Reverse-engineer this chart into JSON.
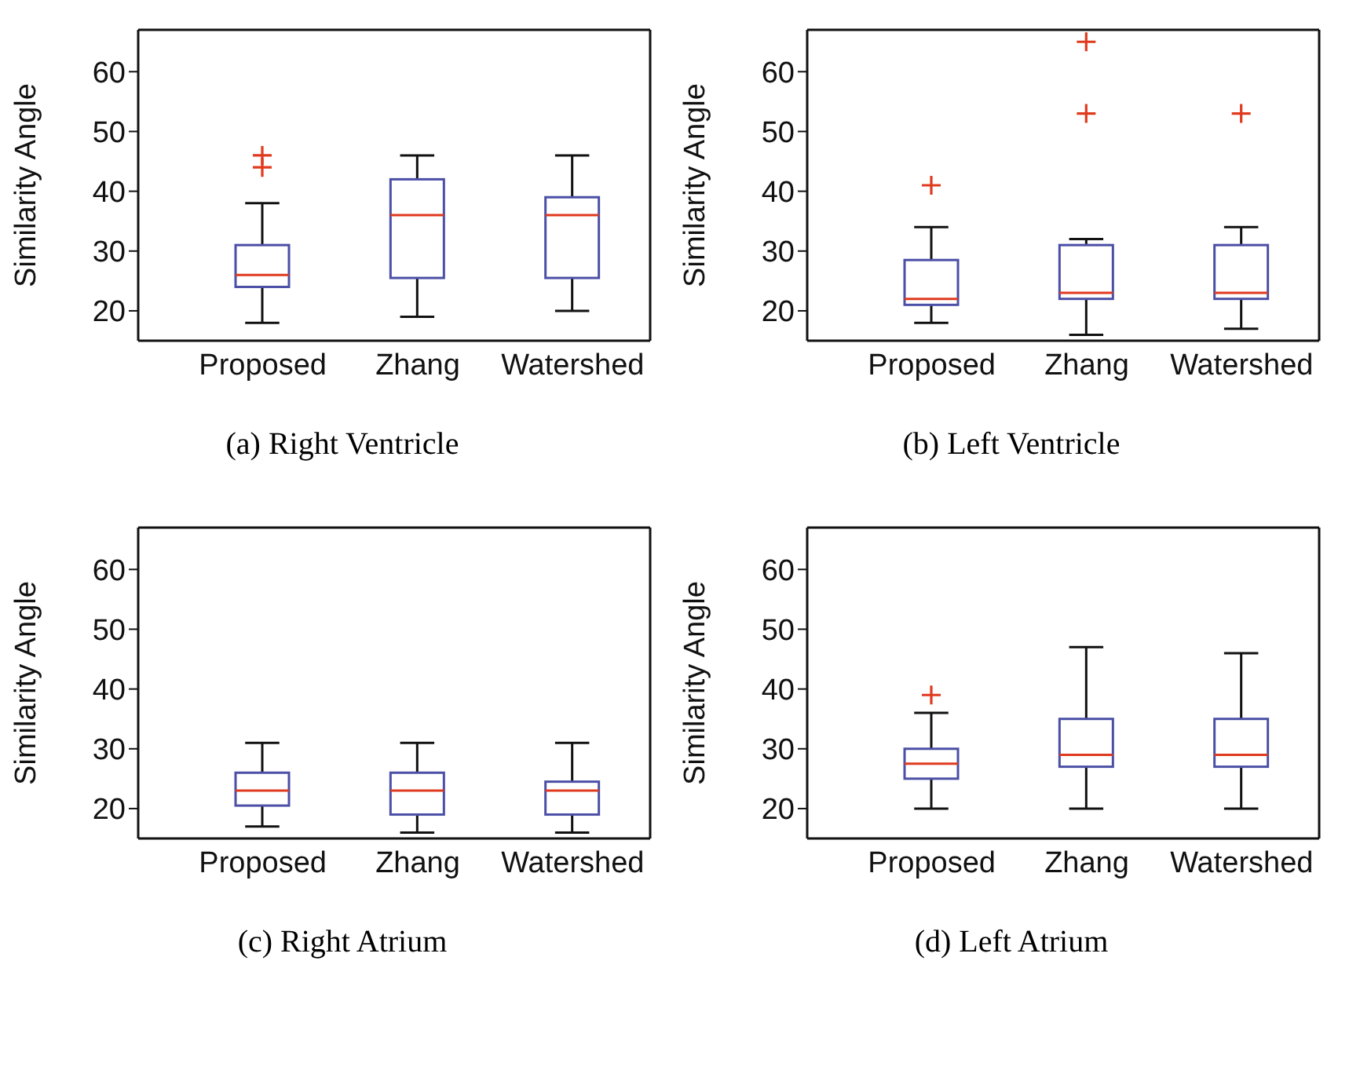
{
  "chart_data": [
    {
      "type": "box",
      "title": "(a) Right Ventricle",
      "ylabel": "Similarity Angle",
      "categories": [
        "Proposed",
        "Zhang",
        "Watershed"
      ],
      "ylim": [
        15,
        67
      ],
      "yticks": [
        20,
        30,
        40,
        50,
        60
      ],
      "grid": false,
      "marker": "cross",
      "series": [
        {
          "color": "#4b4fa6",
          "boxes": [
            {
              "low": 18,
              "q1": 24,
              "median": 26,
              "q3": 31,
              "high": 38,
              "outliers": [
                44,
                46
              ]
            },
            {
              "low": 19,
              "q1": 25.5,
              "median": 36,
              "q3": 42,
              "high": 46
            },
            {
              "low": 20,
              "q1": 25.5,
              "median": 36,
              "q3": 39,
              "high": 46
            }
          ]
        }
      ]
    },
    {
      "type": "box",
      "title": "(b) Left Ventricle",
      "ylabel": "Similarity Angle",
      "categories": [
        "Proposed",
        "Zhang",
        "Watershed"
      ],
      "ylim": [
        15,
        67
      ],
      "yticks": [
        20,
        30,
        40,
        50,
        60
      ],
      "grid": false,
      "marker": "cross",
      "series": [
        {
          "color": "#4b4fa6",
          "boxes": [
            {
              "low": 18,
              "q1": 21,
              "median": 22,
              "q3": 28.5,
              "high": 34,
              "outliers": [
                41
              ]
            },
            {
              "low": 16,
              "q1": 22,
              "median": 23,
              "q3": 31,
              "high": 32,
              "outliers": [
                53,
                65
              ]
            },
            {
              "low": 17,
              "q1": 22,
              "median": 23,
              "q3": 31,
              "high": 34,
              "outliers": [
                53
              ]
            }
          ]
        }
      ]
    },
    {
      "type": "box",
      "title": "(c) Right Atrium",
      "ylabel": "Similarity Angle",
      "categories": [
        "Proposed",
        "Zhang",
        "Watershed"
      ],
      "ylim": [
        15,
        67
      ],
      "yticks": [
        20,
        30,
        40,
        50,
        60
      ],
      "grid": false,
      "marker": "cross",
      "series": [
        {
          "color": "#4b4fa6",
          "boxes": [
            {
              "low": 17,
              "q1": 20.5,
              "median": 23,
              "q3": 26,
              "high": 31
            },
            {
              "low": 16,
              "q1": 19,
              "median": 23,
              "q3": 26,
              "high": 31
            },
            {
              "low": 16,
              "q1": 19,
              "median": 23,
              "q3": 24.5,
              "high": 31
            }
          ]
        }
      ]
    },
    {
      "type": "box",
      "title": "(d) Left Atrium",
      "ylabel": "Similarity Angle",
      "categories": [
        "Proposed",
        "Zhang",
        "Watershed"
      ],
      "ylim": [
        15,
        67
      ],
      "yticks": [
        20,
        30,
        40,
        50,
        60
      ],
      "grid": false,
      "marker": "cross",
      "series": [
        {
          "color": "#4b4fa6",
          "boxes": [
            {
              "low": 20,
              "q1": 25,
              "median": 27.5,
              "q3": 30,
              "high": 36,
              "outliers": [
                39
              ]
            },
            {
              "low": 20,
              "q1": 27,
              "median": 29,
              "q3": 35,
              "high": 47
            },
            {
              "low": 20,
              "q1": 27,
              "median": 29,
              "q3": 35,
              "high": 46
            }
          ]
        }
      ]
    }
  ]
}
